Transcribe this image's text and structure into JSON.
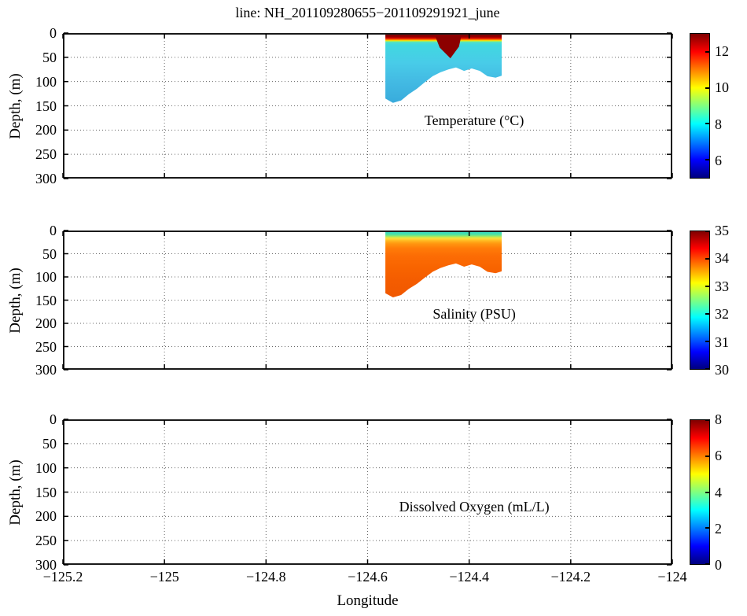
{
  "title": "line: NH_201109280655−201109291921_june",
  "axes": {
    "xlabel": "Longitude",
    "ylabel": "Depth, (m)",
    "x_range": [
      -125.2,
      -124
    ],
    "x_tick_values": [
      -125.2,
      -125,
      -124.8,
      -124.6,
      -124.4,
      -124.2,
      -124
    ],
    "x_tick_labels": [
      "−125.2",
      "−125",
      "−124.8",
      "−124.6",
      "−124.4",
      "−124.2",
      "−124"
    ],
    "y_range": [
      0,
      300
    ],
    "y_tick_values": [
      0,
      50,
      100,
      150,
      200,
      250,
      300
    ],
    "y_tick_labels": [
      "0",
      "50",
      "100",
      "150",
      "200",
      "250",
      "300"
    ],
    "grid": "dotted"
  },
  "colormap_jet": {
    "colors": [
      "#7f0000",
      "#ff0000",
      "#ff8000",
      "#ffff00",
      "#80ff80",
      "#00ffff",
      "#0080ff",
      "#0000ff",
      "#00007f"
    ],
    "fracs": [
      0,
      0.125,
      0.25,
      0.375,
      0.5,
      0.625,
      0.75,
      0.875,
      1
    ]
  },
  "chart_data": [
    {
      "type": "heatmap",
      "variable": "Temperature",
      "units": "°C",
      "label": "Temperature (°C)",
      "colorbar": {
        "min": 5,
        "max": 13,
        "tick_values": [
          12,
          10,
          8,
          6
        ],
        "tick_labels": [
          "12",
          "10",
          "8",
          "6"
        ],
        "colormap": "jet",
        "position": "right"
      },
      "section": {
        "lon_min": -124.565,
        "lon_max": -124.336,
        "surface_value_approx": 12.5,
        "subsurface_value_approx": 8.5,
        "max_depth_m": 144,
        "bottom_profile_lon_depth_m": [
          [
            -124.565,
            135
          ],
          [
            -124.55,
            144
          ],
          [
            -124.534,
            139
          ],
          [
            -124.519,
            126
          ],
          [
            -124.503,
            115
          ],
          [
            -124.488,
            102
          ],
          [
            -124.472,
            89
          ],
          [
            -124.457,
            81
          ],
          [
            -124.441,
            75
          ],
          [
            -124.426,
            71
          ],
          [
            -124.41,
            78
          ],
          [
            -124.395,
            73
          ],
          [
            -124.379,
            78
          ],
          [
            -124.364,
            89
          ],
          [
            -124.348,
            92
          ],
          [
            -124.336,
            88
          ]
        ],
        "depth_color_stops": [
          [
            0,
            "#7a0000"
          ],
          [
            7,
            "#8f0000"
          ],
          [
            10,
            "#c80000"
          ],
          [
            12,
            "#f03000"
          ],
          [
            14,
            "#ff8c00"
          ],
          [
            15.5,
            "#ffe000"
          ],
          [
            17,
            "#a0f060"
          ],
          [
            19,
            "#50e0c8"
          ],
          [
            24,
            "#40d8e0"
          ],
          [
            60,
            "#48cce8"
          ],
          [
            95,
            "#44bce4"
          ],
          [
            130,
            "#3cb0de"
          ],
          [
            144,
            "#38aadc"
          ]
        ],
        "overlays": [
          {
            "name": "warm-surface-intrusion",
            "color": "#8c0000",
            "points": [
              [
                -124.468,
                0
              ],
              [
                -124.415,
                0
              ],
              [
                -124.42,
                28
              ],
              [
                -124.437,
                52
              ],
              [
                -124.458,
                30
              ]
            ]
          }
        ]
      }
    },
    {
      "type": "heatmap",
      "variable": "Salinity",
      "units": "PSU",
      "label": "Salinity (PSU)",
      "colorbar": {
        "min": 30,
        "max": 35,
        "tick_values": [
          35,
          34,
          33,
          32,
          31,
          30
        ],
        "tick_labels": [
          "35",
          "34",
          "33",
          "32",
          "31",
          "30"
        ],
        "colormap": "jet",
        "position": "right"
      },
      "section": {
        "lon_min": -124.565,
        "lon_max": -124.336,
        "surface_value_approx": 32,
        "subsurface_value_approx": 33.8,
        "max_depth_m": 144,
        "bottom_profile_lon_depth_m": [
          [
            -124.565,
            135
          ],
          [
            -124.55,
            144
          ],
          [
            -124.534,
            139
          ],
          [
            -124.519,
            126
          ],
          [
            -124.503,
            115
          ],
          [
            -124.488,
            102
          ],
          [
            -124.472,
            89
          ],
          [
            -124.457,
            81
          ],
          [
            -124.441,
            75
          ],
          [
            -124.426,
            71
          ],
          [
            -124.41,
            78
          ],
          [
            -124.395,
            73
          ],
          [
            -124.379,
            78
          ],
          [
            -124.364,
            89
          ],
          [
            -124.348,
            92
          ],
          [
            -124.336,
            88
          ]
        ],
        "depth_color_stops": [
          [
            0,
            "#7a1010"
          ],
          [
            1.3,
            "#7a1010"
          ],
          [
            3.5,
            "#38d8c0"
          ],
          [
            8,
            "#48e0a8"
          ],
          [
            12,
            "#90e870"
          ],
          [
            15,
            "#d8e848"
          ],
          [
            18,
            "#ffd838"
          ],
          [
            22,
            "#ffb820"
          ],
          [
            28,
            "#ff9810"
          ],
          [
            38,
            "#ff7c08"
          ],
          [
            55,
            "#fc6c04"
          ],
          [
            80,
            "#f86400"
          ],
          [
            110,
            "#f45c00"
          ],
          [
            144,
            "#f05800"
          ]
        ],
        "overlays": []
      }
    },
    {
      "type": "heatmap",
      "variable": "Dissolved Oxygen",
      "units": "mL/L",
      "label": "Dissolved Oxygen (mL/L)",
      "colorbar": {
        "min": 0,
        "max": 8,
        "tick_values": [
          8,
          6,
          4,
          2,
          0
        ],
        "tick_labels": [
          "8",
          "6",
          "4",
          "2",
          "0"
        ],
        "colormap": "jet",
        "position": "right"
      },
      "section": null
    }
  ]
}
